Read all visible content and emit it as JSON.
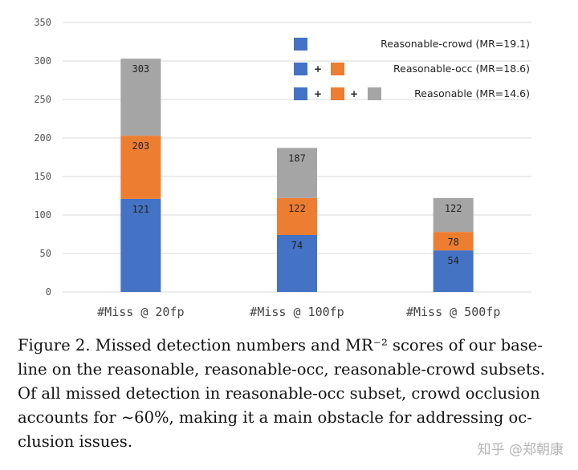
{
  "chart_data": {
    "type": "bar",
    "stacked": true,
    "categories": [
      "#Miss @ 20fp",
      "#Miss @ 100fp",
      "#Miss @ 500fp"
    ],
    "series": [
      {
        "name": "Reasonable-crowd",
        "color": "#4472C4",
        "values": [
          121,
          74,
          54
        ]
      },
      {
        "name": "Reasonable-occ",
        "color": "#ED7D31",
        "values": [
          82,
          48,
          24
        ]
      },
      {
        "name": "Reasonable",
        "color": "#A5A5A5",
        "values": [
          100,
          65,
          44
        ]
      }
    ],
    "cumulative_labels": [
      [
        "121",
        "203",
        "303"
      ],
      [
        "74",
        "122",
        "187"
      ],
      [
        "54",
        "78",
        "122"
      ]
    ],
    "yticks": [
      "0",
      "50",
      "100",
      "150",
      "200",
      "250",
      "300",
      "350"
    ],
    "ylim": [
      0,
      350
    ],
    "legend": [
      {
        "label": "Reasonable-crowd",
        "mr": "(MR=19.1)"
      },
      {
        "label": "Reasonable-occ",
        "mr": "(MR=18.6)"
      },
      {
        "label": "Reasonable",
        "mr": "(MR=14.6)"
      }
    ],
    "legend_plus": "+",
    "legend_position": "top-right",
    "grid": true
  },
  "caption": {
    "lines": [
      "Figure 2. Missed detection numbers and MR⁻² scores of our base-",
      "line on the reasonable, reasonable-occ, reasonable-crowd subsets.",
      "Of all missed detection in reasonable-occ subset, crowd occlusion",
      "accounts for ∼60%, making it a main obstacle for addressing oc-",
      "clusion issues."
    ]
  },
  "watermark": "知乎 @郑朝康"
}
